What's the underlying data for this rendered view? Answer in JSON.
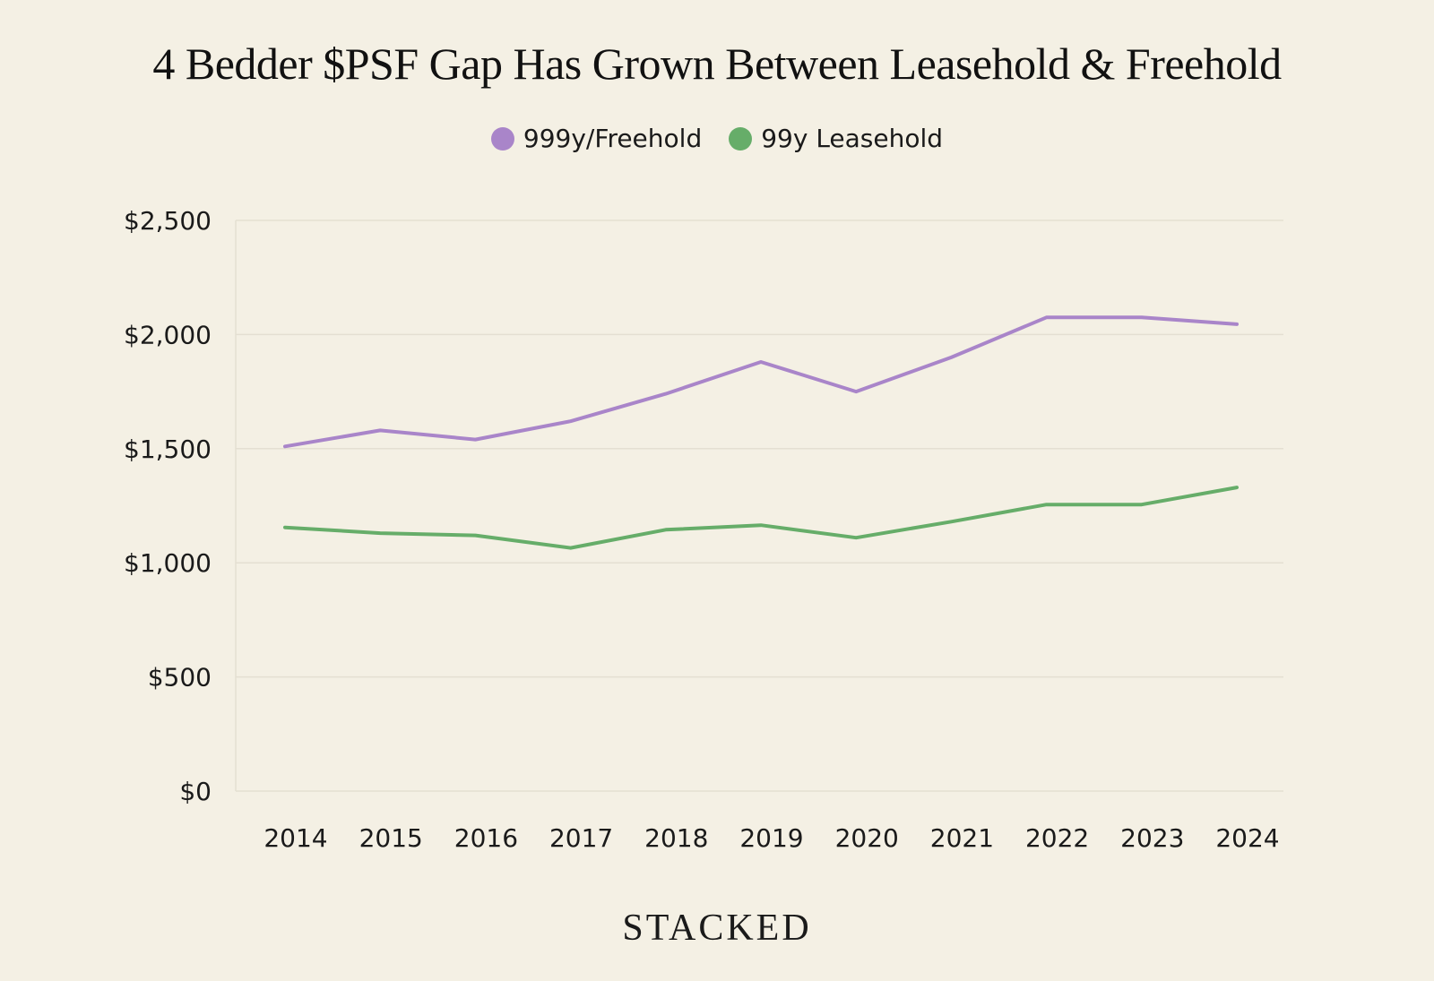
{
  "brand": "STACKED",
  "chart_data": {
    "type": "line",
    "title": "4 Bedder $PSF Gap Has Grown Between Leasehold & Freehold",
    "xlabel": "",
    "ylabel": "",
    "categories": [
      "2014",
      "2015",
      "2016",
      "2017",
      "2018",
      "2019",
      "2020",
      "2021",
      "2022",
      "2023",
      "2024"
    ],
    "ylim": [
      0,
      2500
    ],
    "yticks": [
      0,
      500,
      1000,
      1500,
      2000,
      2500
    ],
    "ytick_labels": [
      "$0",
      "$500",
      "$1,000",
      "$1,500",
      "$2,000",
      "$2,500"
    ],
    "grid": true,
    "legend_position": "top-center",
    "series": [
      {
        "name": "999y/Freehold",
        "color": "#a985c9",
        "values": [
          1510,
          1580,
          1540,
          1620,
          1740,
          1880,
          1750,
          1900,
          2075,
          2075,
          2045
        ]
      },
      {
        "name": "99y Leasehold",
        "color": "#66ad69",
        "values": [
          1155,
          1130,
          1120,
          1065,
          1145,
          1165,
          1110,
          1180,
          1255,
          1255,
          1330
        ]
      }
    ]
  }
}
